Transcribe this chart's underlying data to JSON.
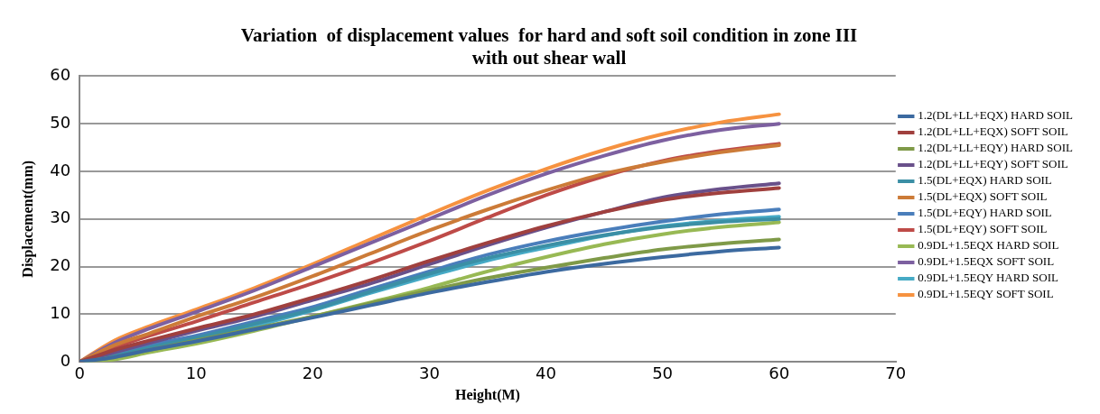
{
  "chart_data": {
    "type": "line",
    "title": [
      "Variation  of displacement values  for hard and soft soil condition in zone III",
      "with out shear wall"
    ],
    "xlabel": "Height(M)",
    "ylabel": "Displacement(mm)",
    "x": [
      0,
      3,
      6,
      10,
      15,
      20,
      25,
      30,
      35,
      40,
      45,
      50,
      55,
      60
    ],
    "xlim": [
      0,
      70
    ],
    "xticks": [
      0,
      10,
      20,
      30,
      40,
      50,
      60,
      70
    ],
    "ylim": [
      0,
      60
    ],
    "yticks": [
      0,
      10,
      20,
      30,
      40,
      50,
      60
    ],
    "grid": "y",
    "legend": "right",
    "marker": "none",
    "line_style": "solid",
    "series": [
      {
        "name": "1.2(DL+LL+EQX) HARD SOIL",
        "color": "#3c6aa0",
        "values": [
          0,
          1,
          2.5,
          4.3,
          6.8,
          9.3,
          11.9,
          14.5,
          16.8,
          18.9,
          20.6,
          22,
          23.2,
          24
        ]
      },
      {
        "name": "1.2(DL+LL+EQX) SOFT SOIL",
        "color": "#a0403e",
        "values": [
          0,
          2.5,
          4.5,
          7,
          10,
          13.5,
          17.2,
          21.2,
          25,
          28.5,
          31.5,
          34,
          35.5,
          36.5
        ]
      },
      {
        "name": "1.2(DL+LL+EQY) HARD SOIL",
        "color": "#7f9a48",
        "values": [
          0,
          1,
          2.5,
          4.5,
          7,
          9.5,
          12.3,
          15,
          17.6,
          19.8,
          21.8,
          23.6,
          24.8,
          25.7
        ]
      },
      {
        "name": "1.2(DL+LL+EQY) SOFT SOIL",
        "color": "#69508a",
        "values": [
          0,
          2,
          4,
          6.5,
          9.5,
          13,
          16.5,
          20.5,
          24.5,
          28.2,
          31.5,
          34.5,
          36.3,
          37.5
        ]
      },
      {
        "name": "1.5(DL+EQX) HARD SOIL",
        "color": "#3b8fa5",
        "values": [
          0,
          1.2,
          3,
          5,
          8,
          11,
          14.8,
          18.5,
          21.8,
          24.4,
          26.6,
          28.3,
          29.4,
          30
        ]
      },
      {
        "name": "1.5(DL+EQX) SOFT SOIL",
        "color": "#cc7b38",
        "values": [
          0,
          3.5,
          6,
          9.5,
          13.5,
          18,
          22.8,
          27.6,
          32,
          36,
          39.5,
          42,
          44,
          45.5
        ]
      },
      {
        "name": "1.5(DL+EQY) HARD SOIL",
        "color": "#4a7ebb",
        "values": [
          0,
          1.5,
          3.5,
          5.5,
          8.5,
          11.5,
          15.3,
          19,
          22.5,
          25.3,
          27.6,
          29.5,
          31,
          32
        ]
      },
      {
        "name": "1.5(DL+EQY) SOFT SOIL",
        "color": "#be4b48",
        "values": [
          0,
          3,
          5.5,
          8.5,
          12.5,
          16.5,
          20.8,
          25.4,
          30.3,
          35,
          39,
          42.2,
          44.3,
          45.8
        ]
      },
      {
        "name": "0.9DL+1.5EQX HARD SOIL",
        "color": "#98b954",
        "values": [
          0,
          0.5,
          2,
          3.8,
          6.5,
          9.5,
          12.5,
          15.6,
          19,
          22,
          24.7,
          26.8,
          28.3,
          29.3
        ]
      },
      {
        "name": "0.9DL+1.5EQX SOFT SOIL",
        "color": "#7d60a0",
        "values": [
          0,
          4,
          7,
          10.5,
          15,
          20,
          25,
          30,
          35,
          39.5,
          43.3,
          46.5,
          48.7,
          50
        ]
      },
      {
        "name": "0.9DL+1.5EQY HARD SOIL",
        "color": "#46aac5",
        "values": [
          0,
          1,
          2.5,
          4.5,
          7.5,
          10.8,
          14.5,
          18,
          21.3,
          24,
          26.5,
          28.5,
          29.7,
          30.5
        ]
      },
      {
        "name": "0.9DL+1.5EQY SOFT SOIL",
        "color": "#f69240",
        "values": [
          0,
          4.5,
          7.5,
          11,
          15.5,
          20.5,
          25.8,
          31,
          36,
          40.5,
          44.5,
          47.8,
          50.3,
          52
        ]
      }
    ]
  }
}
